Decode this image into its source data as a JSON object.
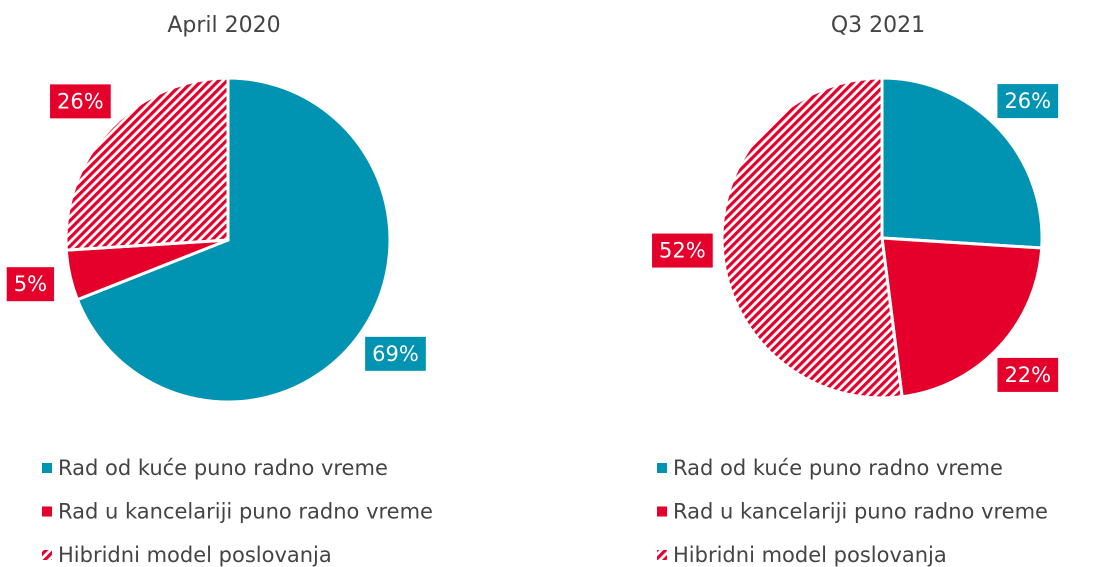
{
  "chart_data": [
    {
      "type": "pie",
      "title": "April 2020",
      "categories": [
        "Rad od kuće puno radno vreme",
        "Rad u kancelariji puno radno vreme",
        "Hibridni model poslovanja"
      ],
      "values": [
        69,
        5,
        26
      ],
      "value_labels": [
        "69%",
        "5%",
        "26%"
      ],
      "colors": [
        "#0093b2",
        "#e4002b",
        "#e4002b"
      ],
      "hatched": [
        false,
        false,
        true
      ]
    },
    {
      "type": "pie",
      "title": "Q3 2021",
      "categories": [
        "Rad od kuće puno radno vreme",
        "Rad u kancelariji puno radno vreme",
        "Hibridni model poslovanja"
      ],
      "values": [
        26,
        22,
        52
      ],
      "value_labels": [
        "26%",
        "22%",
        "52%"
      ],
      "colors": [
        "#0093b2",
        "#e4002b",
        "#e4002b"
      ],
      "hatched": [
        false,
        false,
        true
      ]
    }
  ]
}
